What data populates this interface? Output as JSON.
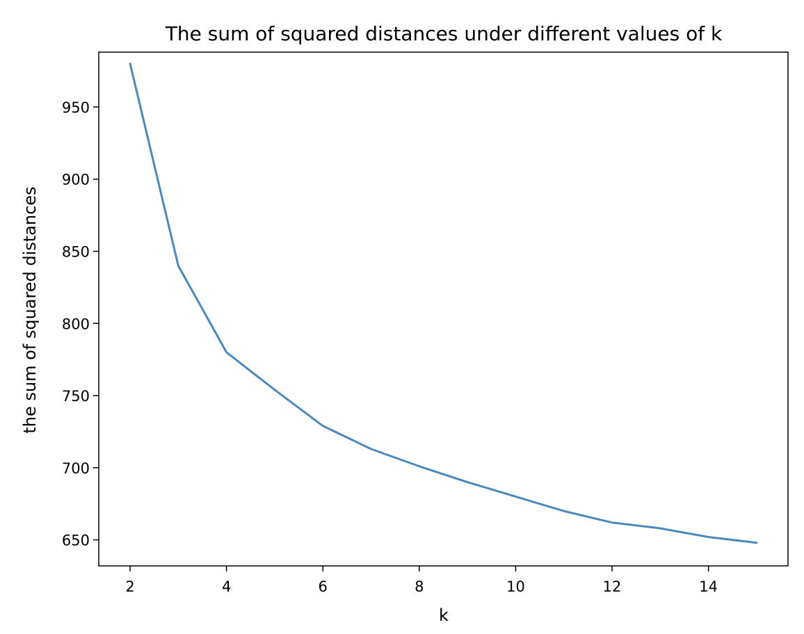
{
  "chart_data": {
    "type": "line",
    "title": "The sum of squared distances under different values of k",
    "xlabel": "k",
    "ylabel": "the sum of squared distances",
    "xlim": [
      1.35,
      15.65
    ],
    "ylim": [
      632,
      988
    ],
    "xticks": [
      2,
      4,
      6,
      8,
      10,
      12,
      14
    ],
    "yticks": [
      650,
      700,
      750,
      800,
      850,
      900,
      950
    ],
    "grid": false,
    "series": [
      {
        "color": "#4a88be",
        "x": [
          2,
          3,
          4,
          5,
          6,
          7,
          8,
          9,
          10,
          11,
          12,
          13,
          14,
          15
        ],
        "y": [
          980,
          840,
          780,
          754,
          729,
          713,
          701,
          690,
          680,
          670,
          662,
          658,
          652,
          648
        ]
      }
    ]
  }
}
